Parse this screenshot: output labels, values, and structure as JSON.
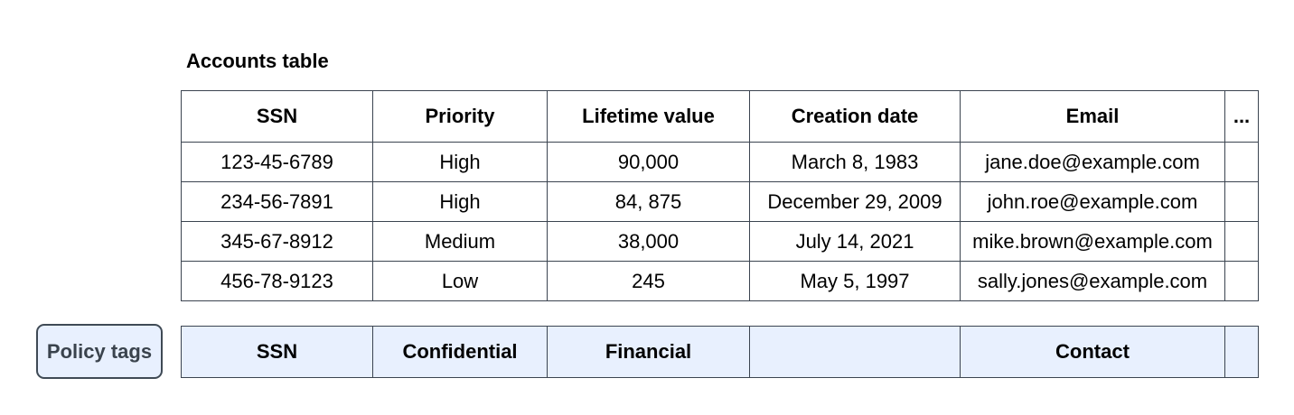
{
  "title": "Accounts table",
  "accounts_table": {
    "columns": [
      "SSN",
      "Priority",
      "Lifetime value",
      "Creation date",
      "Email",
      "..."
    ],
    "rows": [
      [
        "123-45-6789",
        "High",
        "90,000",
        "March 8, 1983",
        "jane.doe@example.com",
        ""
      ],
      [
        "234-56-7891",
        "High",
        "84, 875",
        "December 29, 2009",
        "john.roe@example.com",
        ""
      ],
      [
        "345-67-8912",
        "Medium",
        "38,000",
        "July 14, 2021",
        "mike.brown@example.com",
        ""
      ],
      [
        "456-78-9123",
        "Low",
        "245",
        "May 5, 1997",
        "sally.jones@example.com",
        ""
      ]
    ]
  },
  "policy_tags": {
    "button_label": "Policy tags",
    "cells": [
      "SSN",
      "Confidential",
      "Financial",
      "",
      "Contact",
      ""
    ]
  },
  "colors": {
    "border": "#3b4450",
    "tag_fill": "#e8f0fe",
    "button_border": "#3f4a55",
    "button_text": "#3a434d"
  }
}
